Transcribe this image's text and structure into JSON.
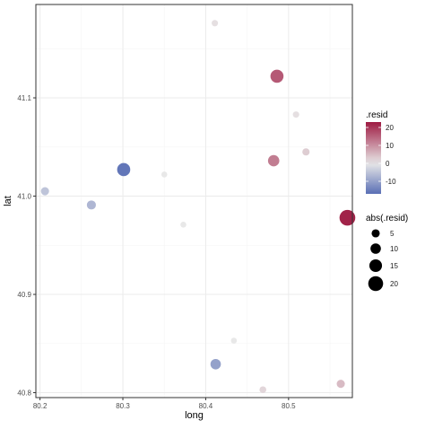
{
  "chart_data": {
    "type": "scatter",
    "title": "",
    "xlabel": "long",
    "ylabel": "lat",
    "xlim": [
      80.195,
      80.577
    ],
    "ylim": [
      40.795,
      41.195
    ],
    "x_ticks": [
      {
        "value": 80.2,
        "label": "80.2"
      },
      {
        "value": 80.3,
        "label": "80.3"
      },
      {
        "value": 80.4,
        "label": "80.4"
      },
      {
        "value": 80.5,
        "label": "80.5"
      }
    ],
    "y_ticks": [
      {
        "value": 40.8,
        "label": "40.8"
      },
      {
        "value": 40.9,
        "label": "40.9"
      },
      {
        "value": 41.0,
        "label": "41.0"
      },
      {
        "value": 41.1,
        "label": "41.1"
      }
    ],
    "grid": true,
    "points": [
      {
        "long": 80.411,
        "lat": 41.176,
        "resid": 1
      },
      {
        "long": 80.486,
        "lat": 41.122,
        "resid": 16
      },
      {
        "long": 80.509,
        "lat": 41.083,
        "resid": 1
      },
      {
        "long": 80.521,
        "lat": 41.045,
        "resid": 3
      },
      {
        "long": 80.482,
        "lat": 41.036,
        "resid": 12
      },
      {
        "long": 80.301,
        "lat": 41.027,
        "resid": -16
      },
      {
        "long": 80.35,
        "lat": 41.022,
        "resid": 0
      },
      {
        "long": 80.206,
        "lat": 41.005,
        "resid": -5
      },
      {
        "long": 80.262,
        "lat": 40.991,
        "resid": -7
      },
      {
        "long": 80.571,
        "lat": 40.978,
        "resid": 22
      },
      {
        "long": 80.373,
        "lat": 40.971,
        "resid": 0
      },
      {
        "long": 80.434,
        "lat": 40.853,
        "resid": 0
      },
      {
        "long": 80.412,
        "lat": 40.829,
        "resid": -10
      },
      {
        "long": 80.563,
        "lat": 40.809,
        "resid": 5
      },
      {
        "long": 80.469,
        "lat": 40.803,
        "resid": 2
      }
    ],
    "color_legend": {
      "title": ".resid",
      "range": [
        -17,
        23
      ],
      "breaks": [
        {
          "value": 20,
          "label": "20"
        },
        {
          "value": 10,
          "label": "10"
        },
        {
          "value": 0,
          "label": "0"
        },
        {
          "value": -10,
          "label": "-10"
        }
      ],
      "colors": {
        "low": "#5a6fb5",
        "mid": "#e8e8e8",
        "high": "#9e1a42"
      }
    },
    "size_legend": {
      "title": "abs(.resid)",
      "breaks": [
        {
          "value": 5,
          "label": "5"
        },
        {
          "value": 10,
          "label": "10"
        },
        {
          "value": 15,
          "label": "15"
        },
        {
          "value": 20,
          "label": "20"
        }
      ]
    },
    "colors": {
      "panel_border": "#333333",
      "grid_major": "#ebebeb",
      "grid_minor": "#f5f5f5"
    }
  }
}
